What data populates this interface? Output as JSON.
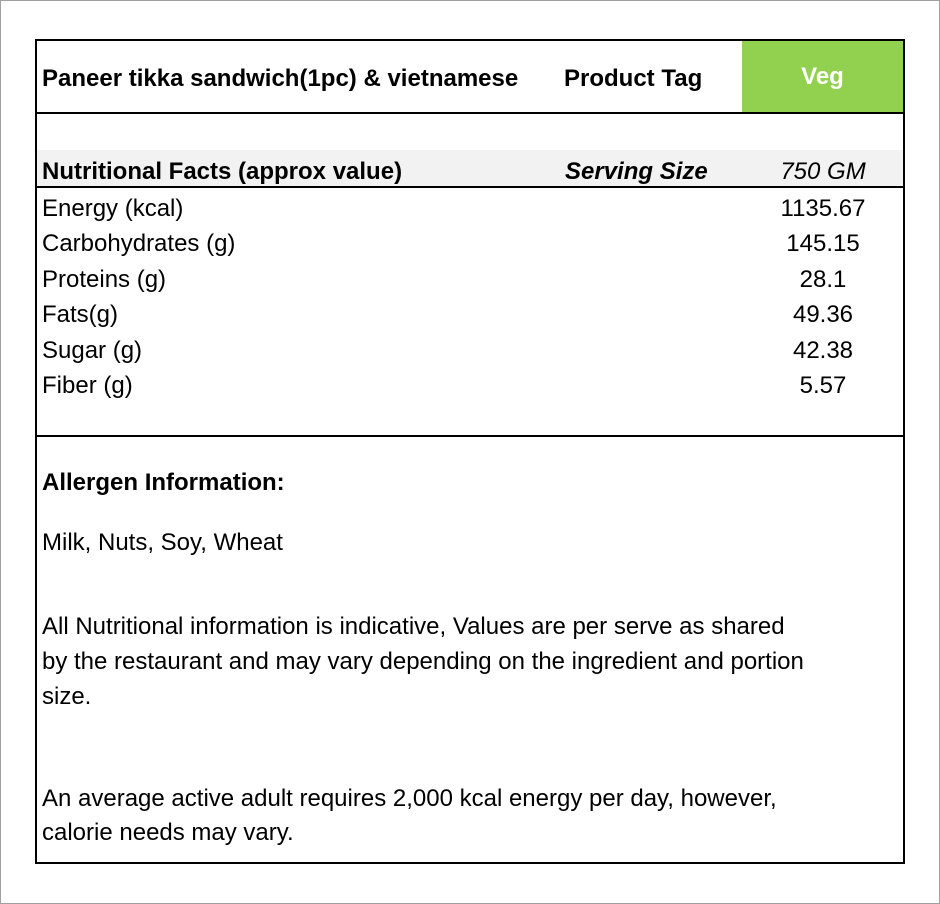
{
  "header": {
    "product_name": "Paneer tikka sandwich(1pc) & vietnamese",
    "product_tag_label": "Product Tag",
    "product_tag_value": "Veg",
    "tag_color": "#92d050"
  },
  "nutrition": {
    "heading": "Nutritional Facts (approx value)",
    "serving_size_label": "Serving Size",
    "serving_size_value": "750 GM",
    "rows": [
      {
        "label": "Energy (kcal)",
        "value": "1135.67"
      },
      {
        "label": "Carbohydrates (g)",
        "value": "145.15"
      },
      {
        "label": "Proteins (g)",
        "value": "28.1"
      },
      {
        "label": "Fats(g)",
        "value": "49.36"
      },
      {
        "label": "Sugar (g)",
        "value": "42.38"
      },
      {
        "label": "Fiber (g)",
        "value": "5.57"
      }
    ]
  },
  "allergen": {
    "heading": "Allergen Information:",
    "items": "Milk, Nuts, Soy, Wheat",
    "disclaimer_lines": [
      "All Nutritional information is indicative, Values are per serve as shared",
      "by the restaurant and may vary depending on the ingredient and portion",
      "size."
    ],
    "calorie_note_lines": [
      "An average active adult requires 2,000 kcal energy per day, however,",
      "calorie needs may vary."
    ]
  }
}
